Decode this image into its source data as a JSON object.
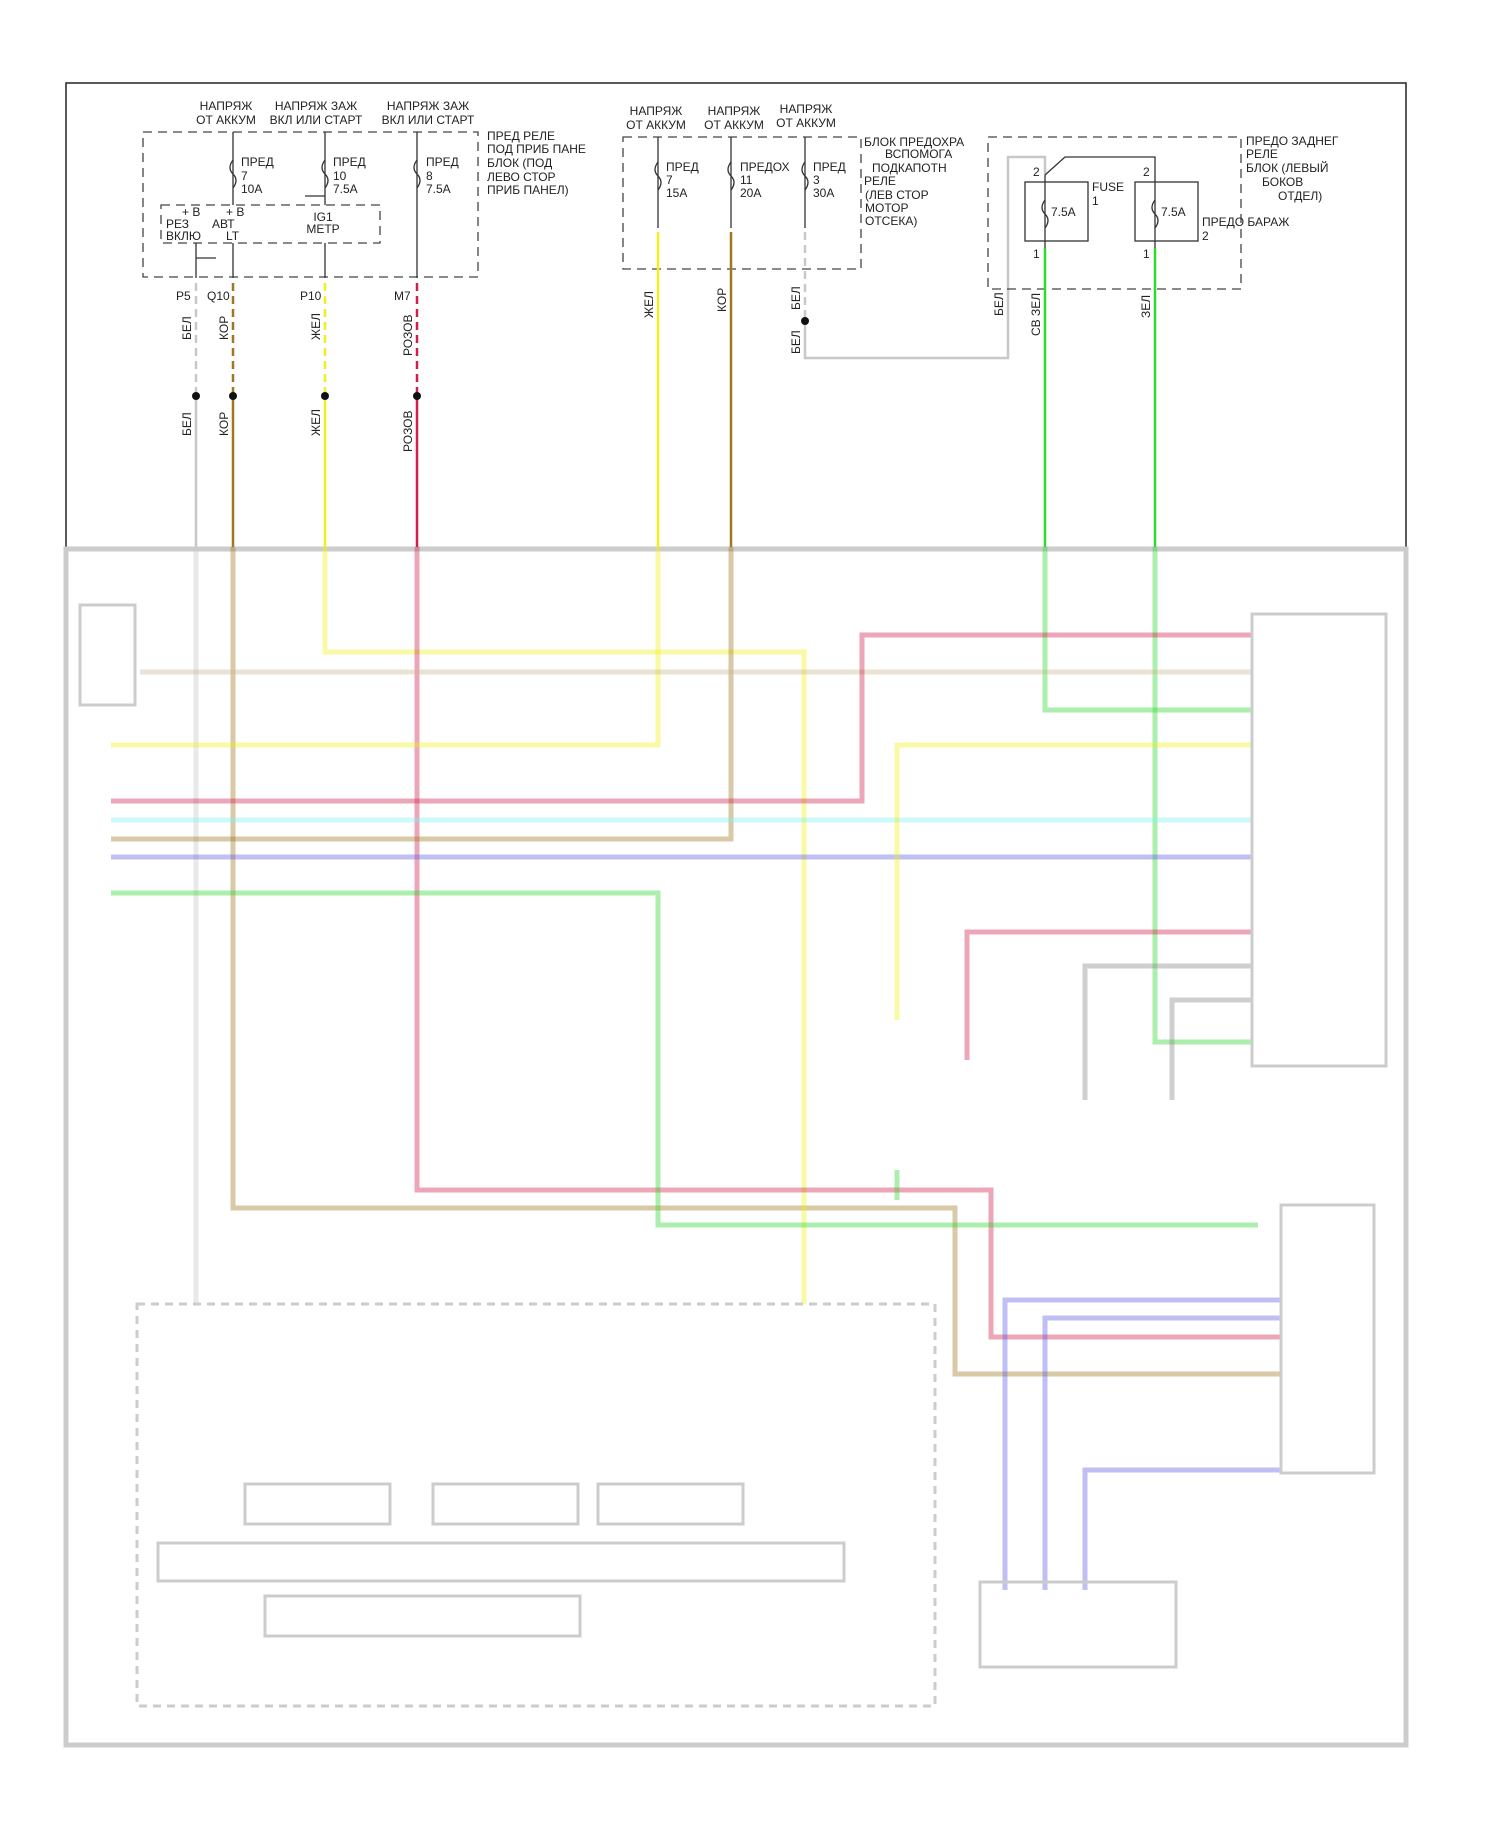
{
  "colors": {
    "white": "#c8c8c8",
    "brown": "#a07820",
    "yellow": "#f0f020",
    "pink": "#d0204a",
    "green": "#30d830",
    "cyan": "#80f0f0",
    "blue": "#6060e0",
    "beige": "#c8b890"
  },
  "block1": {
    "top_labels": [
      [
        "НАПРЯЖ",
        "ОТ АККУМ"
      ],
      [
        "НАПРЯЖ ЗАЖ",
        "ВКЛ ИЛИ СТАРТ"
      ],
      [
        "НАПРЯЖ ЗАЖ",
        "ВКЛ ИЛИ СТАРТ"
      ]
    ],
    "fuses": [
      [
        "ПРЕД",
        "7",
        "10A"
      ],
      [
        "ПРЕД",
        "10",
        "7.5A"
      ],
      [
        "ПРЕД",
        "8",
        "7.5A"
      ]
    ],
    "name": [
      "ПРЕД РЕЛЕ",
      "ПОД ПРИБ ПАНЕ",
      "БЛОК (ПОД",
      "ЛЕВО СТОР",
      "ПРИБ ПАНЕЛ)"
    ],
    "inner": {
      "b1": "+ B",
      "rez": "РЕЗ",
      "vklyu": "ВКЛЮ",
      "b2": "+ B",
      "avt": "АВТ",
      "lt": "LT",
      "ig1": "IG1",
      "metr": "МЕТР"
    },
    "connectors": [
      "P5",
      "Q10",
      "P10",
      "M7"
    ],
    "wire_labels": [
      "БЕЛ",
      "КОР",
      "ЖЕЛ",
      "РОЗОВ"
    ]
  },
  "block2": {
    "top_labels": [
      [
        "НАПРЯЖ",
        "ОТ АККУМ"
      ],
      [
        "НАПРЯЖ",
        "ОТ АККУМ"
      ],
      [
        "НАПРЯЖ",
        "ОТ АККУМ"
      ]
    ],
    "fuses": [
      [
        "ПРЕД",
        "7",
        "15A"
      ],
      [
        "ПРЕДОХ",
        "11",
        "20A"
      ],
      [
        "ПРЕД",
        "3",
        "30A"
      ]
    ],
    "name": [
      "БЛОК ПРЕДОХРА",
      "ВСПОМОГА",
      "ПОДКАПОТН",
      "РЕЛЕ",
      "(ЛЕВ СТОР",
      "МОТОР",
      "ОТСЕКА)"
    ],
    "wire_labels": [
      "ЖЕЛ",
      "КОР",
      "БЕЛ",
      "БЕЛ",
      "БЕЛ"
    ]
  },
  "block3": {
    "fuses": [
      {
        "label": "FUSE",
        "num": "1",
        "rating": "7.5A",
        "pin_top": "2",
        "pin_bottom": "1"
      },
      {
        "label": "ПРЕДО БАРАЖ",
        "num": "2",
        "rating": "7.5A",
        "pin_top": "2",
        "pin_bottom": "1"
      }
    ],
    "name": [
      "ПРЕДО ЗАДНЕГ",
      "РЕЛЕ",
      "БЛОК (ЛЕВЫЙ",
      "БОКОВ",
      "ОТДЕЛ)"
    ],
    "wire_labels": [
      "СВ ЗЕЛ",
      "ЗЕЛ"
    ]
  }
}
